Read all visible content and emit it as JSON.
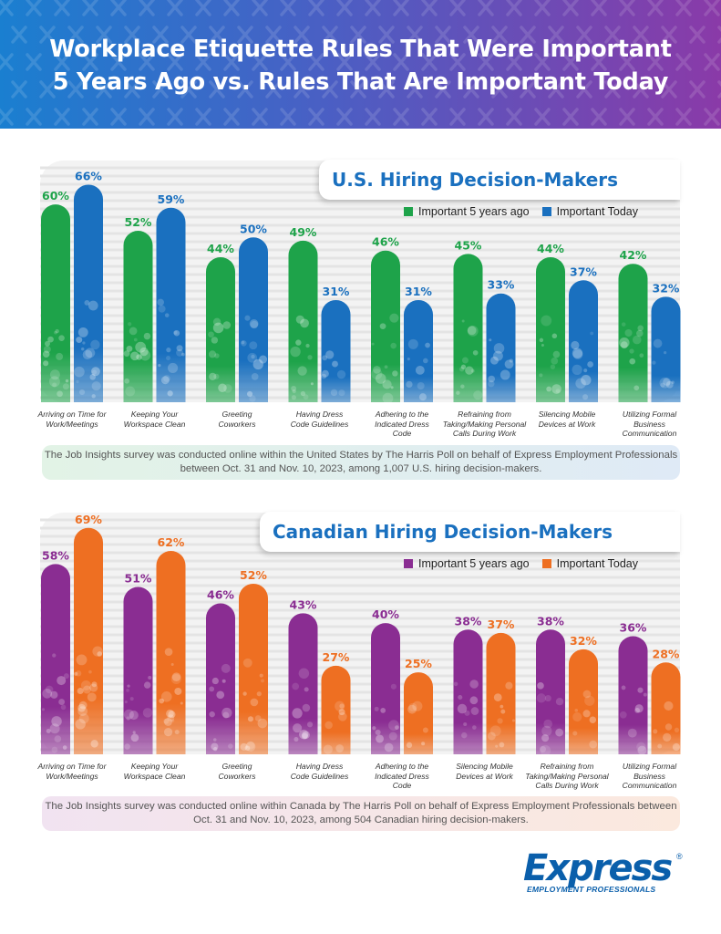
{
  "header": {
    "title_line1": "Workplace Etiquette Rules That Were Important",
    "title_line2": "5 Years Ago vs. Rules That Are Important Today"
  },
  "colors": {
    "us_past": "#1ea34a",
    "us_today": "#1a70bf",
    "ca_past": "#8a2d92",
    "ca_today": "#ee6f22",
    "title_us": "#1a70bf",
    "title_ca": "#1a70bf"
  },
  "chart_data": [
    {
      "type": "bar",
      "title": "U.S. Hiring Decision-Makers",
      "categories": [
        "Arriving on Time for Work/Meetings",
        "Keeping Your Workspace Clean",
        "Greeting Coworkers",
        "Having Dress Code Guidelines",
        "Adhering to the Indicated Dress Code",
        "Refraining from Taking/Making Personal Calls During Work",
        "Silencing Mobile Devices at Work",
        "Utilizing Formal Business Communication"
      ],
      "category_lines": [
        [
          "Arriving on Time for",
          "Work/Meetings"
        ],
        [
          "Keeping Your",
          "Workspace Clean"
        ],
        [
          "Greeting",
          "Coworkers"
        ],
        [
          "Having Dress",
          "Code Guidelines"
        ],
        [
          "Adhering to the",
          "Indicated Dress",
          "Code"
        ],
        [
          "Refraining from",
          "Taking/Making Personal",
          "Calls During Work"
        ],
        [
          "Silencing Mobile",
          "Devices at Work"
        ],
        [
          "Utilizing Formal",
          "Business",
          "Communication"
        ]
      ],
      "series": [
        {
          "name": "Important 5 years ago",
          "values": [
            60,
            52,
            44,
            49,
            46,
            45,
            44,
            42
          ]
        },
        {
          "name": "Important Today",
          "values": [
            66,
            59,
            50,
            31,
            31,
            33,
            37,
            32
          ]
        }
      ],
      "value_suffix": "%",
      "ylim": [
        0,
        70
      ],
      "legend": "top-right",
      "grid": false
    },
    {
      "type": "bar",
      "title": "Canadian Hiring Decision-Makers",
      "categories": [
        "Arriving on Time for Work/Meetings",
        "Keeping Your Workspace Clean",
        "Greeting Coworkers",
        "Having Dress Code Guidelines",
        "Adhering to the Indicated Dress Code",
        "Silencing Mobile Devices at Work",
        "Refraining from Taking/Making Personal Calls During Work",
        "Utilizing Formal Business Communication"
      ],
      "category_lines": [
        [
          "Arriving on Time for",
          "Work/Meetings"
        ],
        [
          "Keeping Your",
          "Workspace Clean"
        ],
        [
          "Greeting",
          "Coworkers"
        ],
        [
          "Having Dress",
          "Code Guidelines"
        ],
        [
          "Adhering to the",
          "Indicated Dress",
          "Code"
        ],
        [
          "Silencing Mobile",
          "Devices at Work"
        ],
        [
          "Refraining from",
          "Taking/Making Personal",
          "Calls During Work"
        ],
        [
          "Utilizing Formal",
          "Business",
          "Communication"
        ]
      ],
      "series": [
        {
          "name": "Important 5 years ago",
          "values": [
            58,
            51,
            46,
            43,
            40,
            38,
            38,
            36
          ]
        },
        {
          "name": "Important Today",
          "values": [
            69,
            62,
            52,
            27,
            25,
            37,
            32,
            28
          ]
        }
      ],
      "value_suffix": "%",
      "ylim": [
        0,
        72
      ],
      "legend": "top-right",
      "grid": false
    }
  ],
  "notes": {
    "us": "The Job Insights survey was conducted online within the United States by The Harris Poll on behalf of Express Employment Professionals between Oct. 31 and Nov. 10, 2023, among 1,007 U.S. hiring decision-makers.",
    "ca": "The Job Insights survey was conducted online within Canada by The Harris Poll on behalf of Express Employment Professionals between Oct. 31 and Nov. 10, 2023, among 504 Canadian hiring decision-makers."
  },
  "logo": {
    "main": "Express",
    "sub": "EMPLOYMENT PROFESSIONALS",
    "reg": "®",
    "icon": "express-logo"
  }
}
